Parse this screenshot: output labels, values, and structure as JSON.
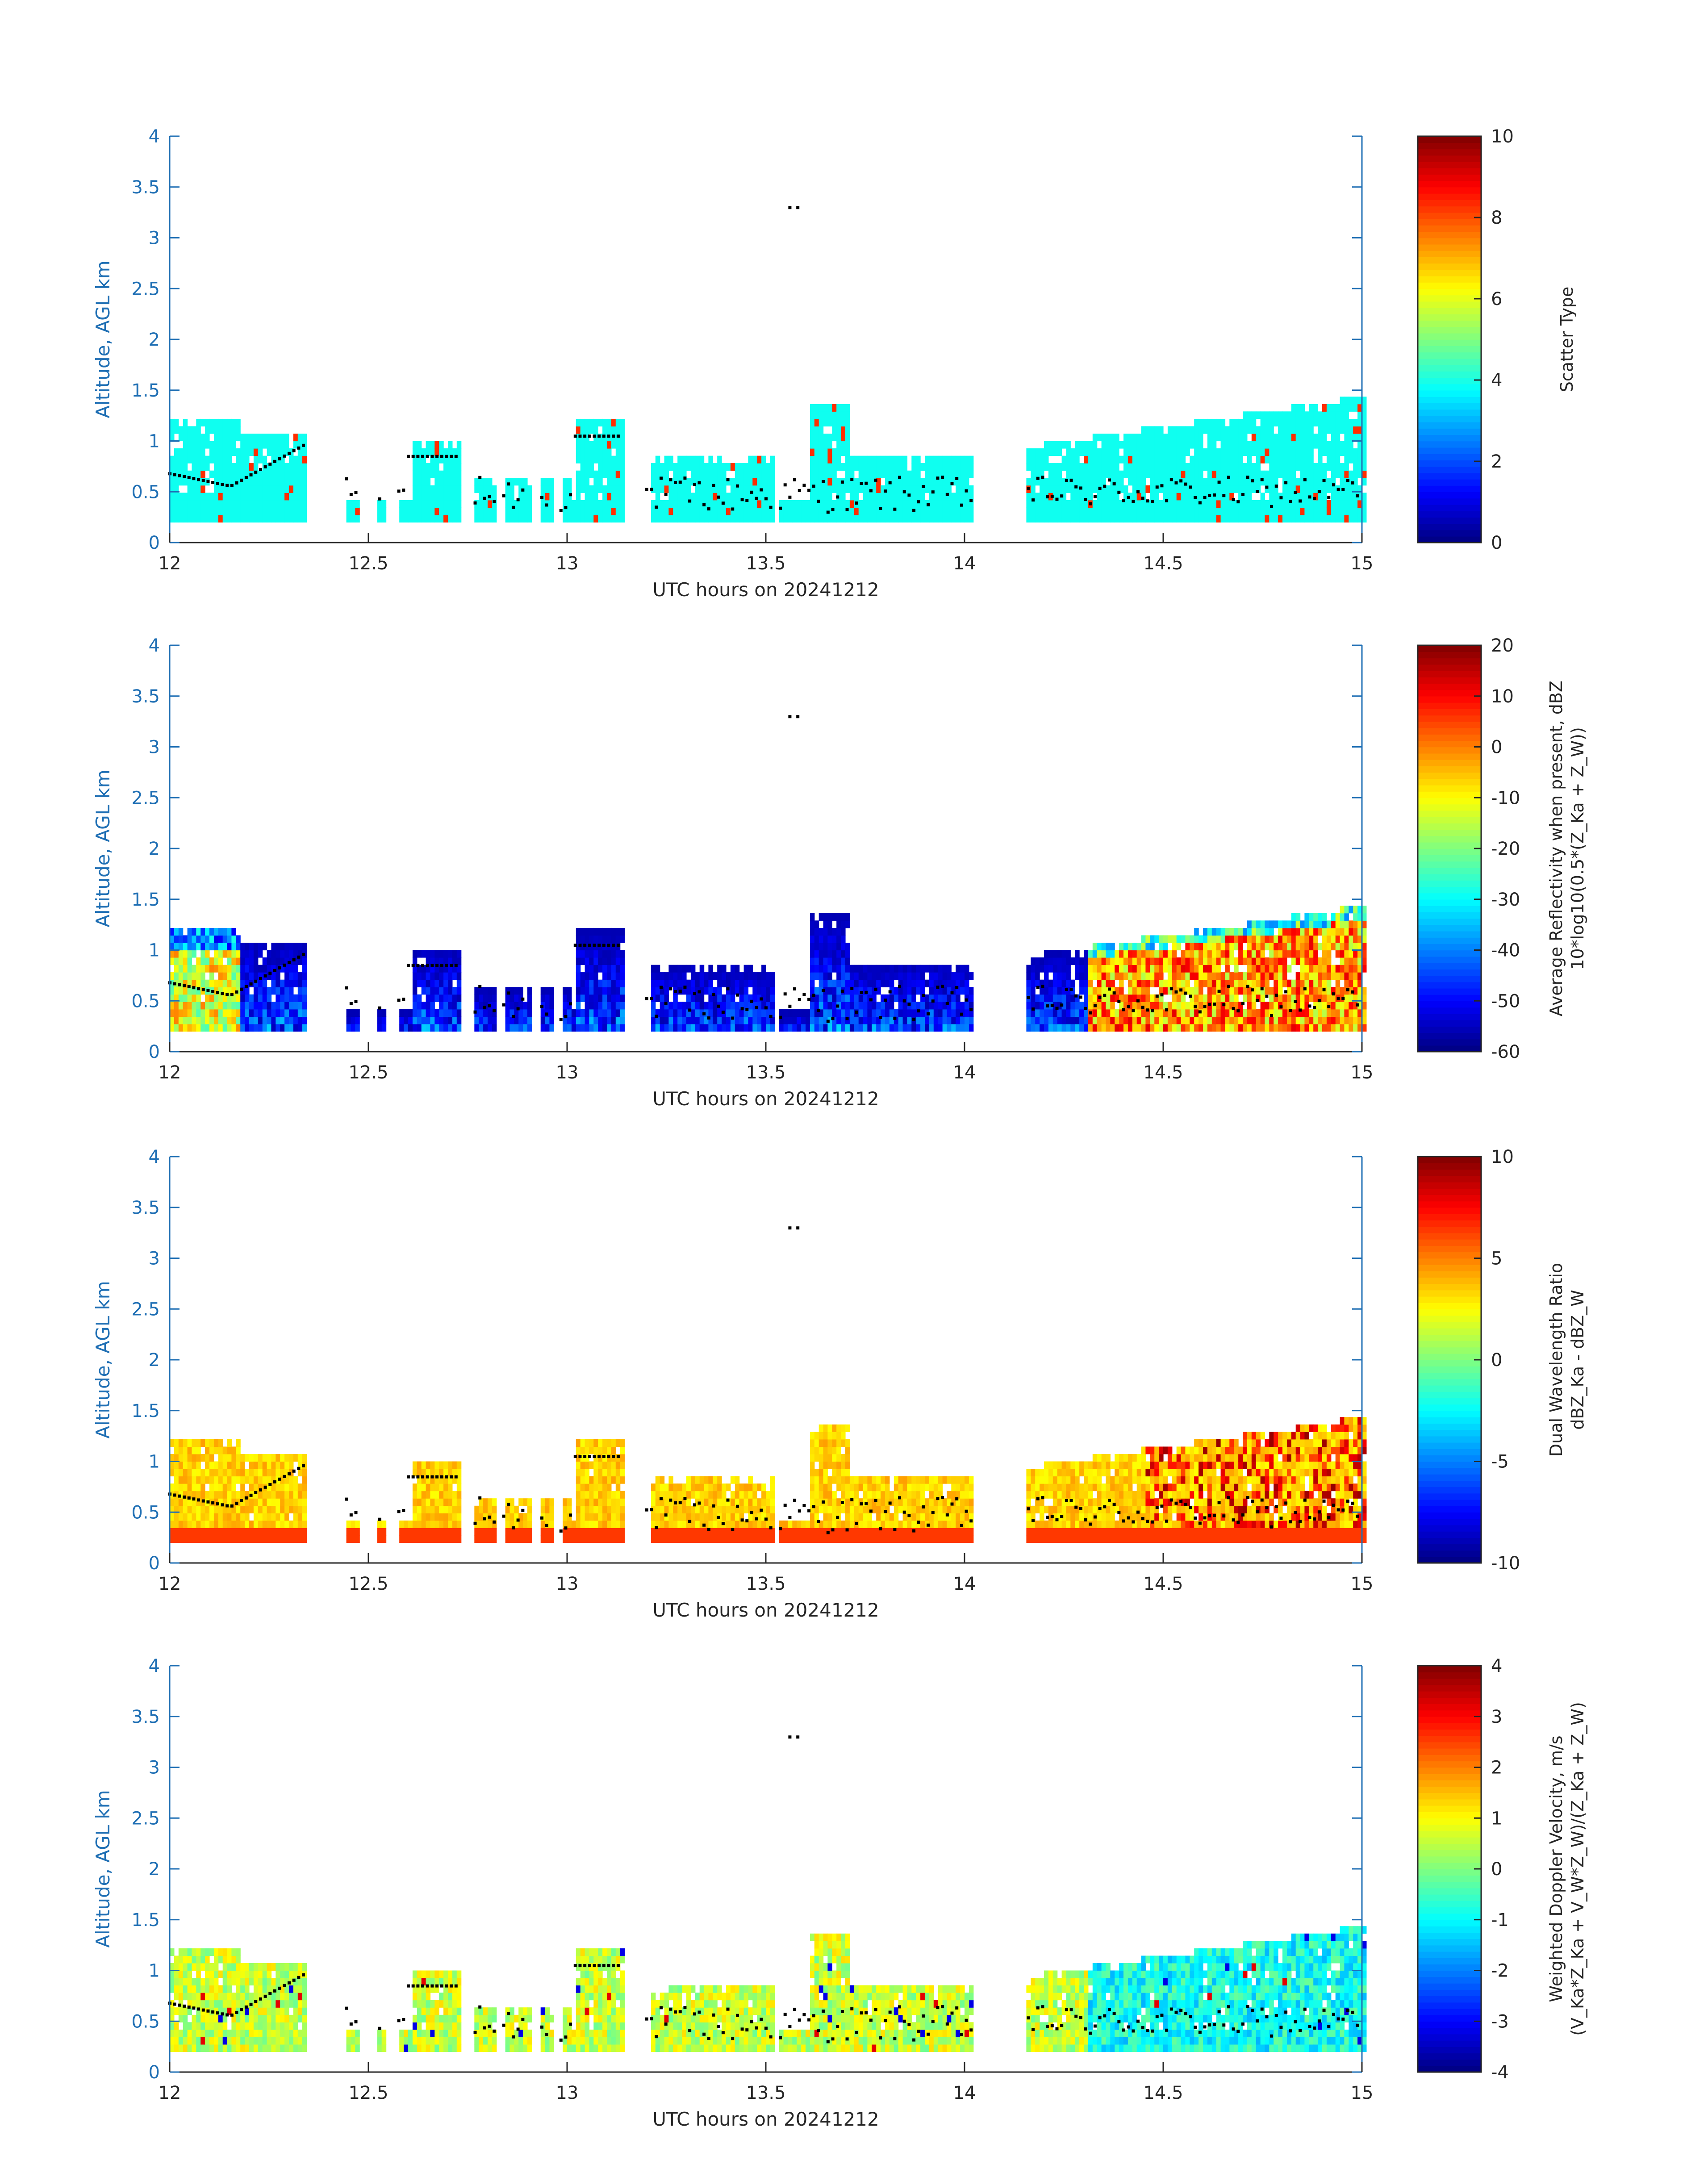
{
  "figure": {
    "xlabel": "UTC hours on 20241212",
    "ylabel": "Altitude, AGL km",
    "xticks": [
      "12",
      "12.5",
      "13",
      "13.5",
      "14",
      "14.5",
      "15"
    ],
    "yticks": [
      "0",
      "0.5",
      "1",
      "1.5",
      "2",
      "2.5",
      "3",
      "3.5",
      "4"
    ],
    "colors": {
      "axis": "#1f6fb4",
      "text": "#262626",
      "marker": "#000000"
    }
  },
  "chart_data": [
    {
      "type": "heatmap",
      "title": "",
      "xlabel": "UTC hours on 20241212",
      "ylabel": "Altitude, AGL km",
      "xlim": [
        12,
        15
      ],
      "ylim": [
        0,
        4
      ],
      "colormap": "jet",
      "colorbar": {
        "label_lines": [
          "Scatter Type"
        ],
        "clim": [
          0,
          10
        ],
        "ticks": [
          "0",
          "2",
          "4",
          "6",
          "8",
          "10"
        ]
      },
      "dominant_value": 3.9,
      "secondary_value": 8.3,
      "cloud_base_markers_km": "black dots along cloud base (~0.3-1.0 km), isolated pair at 3.3 km near 13.57 h"
    },
    {
      "type": "heatmap",
      "title": "",
      "xlabel": "UTC hours on 20241212",
      "ylabel": "Altitude, AGL km",
      "xlim": [
        12,
        15
      ],
      "ylim": [
        0,
        4
      ],
      "colormap": "jet",
      "colorbar": {
        "label_lines": [
          "Average Reflectivity when present, dBZ",
          "10*log10(0.5*(Z_Ka + Z_W))"
        ],
        "clim": [
          -60,
          20
        ],
        "ticks": [
          "-60",
          "-50",
          "-40",
          "-30",
          "-20",
          "-10",
          "0",
          "10",
          "20"
        ]
      },
      "value_range_dBZ": [
        -60,
        15
      ]
    },
    {
      "type": "heatmap",
      "title": "",
      "xlabel": "UTC hours on 20241212",
      "ylabel": "Altitude, AGL km",
      "xlim": [
        12,
        15
      ],
      "ylim": [
        0,
        4
      ],
      "colormap": "jet",
      "colorbar": {
        "label_lines": [
          "Dual Wavelength Ratio",
          "dBZ_Ka - dBZ_W"
        ],
        "clim": [
          -10,
          10
        ],
        "ticks": [
          "-10",
          "-5",
          "0",
          "5",
          "10"
        ]
      },
      "value_range_dB": [
        0,
        10
      ]
    },
    {
      "type": "heatmap",
      "title": "",
      "xlabel": "UTC hours on 20241212",
      "ylabel": "Altitude, AGL km",
      "xlim": [
        12,
        15
      ],
      "ylim": [
        0,
        4
      ],
      "colormap": "jet",
      "colorbar": {
        "label_lines": [
          "Weighted Doppler Velocity, m/s",
          "(V_Ka*Z_Ka + V_W*Z_W)/(Z_Ka + Z_W)"
        ],
        "clim": [
          -4,
          4
        ],
        "ticks": [
          "-4",
          "-3",
          "-2",
          "-1",
          "0",
          "1",
          "2",
          "3",
          "4"
        ]
      },
      "value_range_ms": [
        -3,
        2
      ]
    }
  ]
}
